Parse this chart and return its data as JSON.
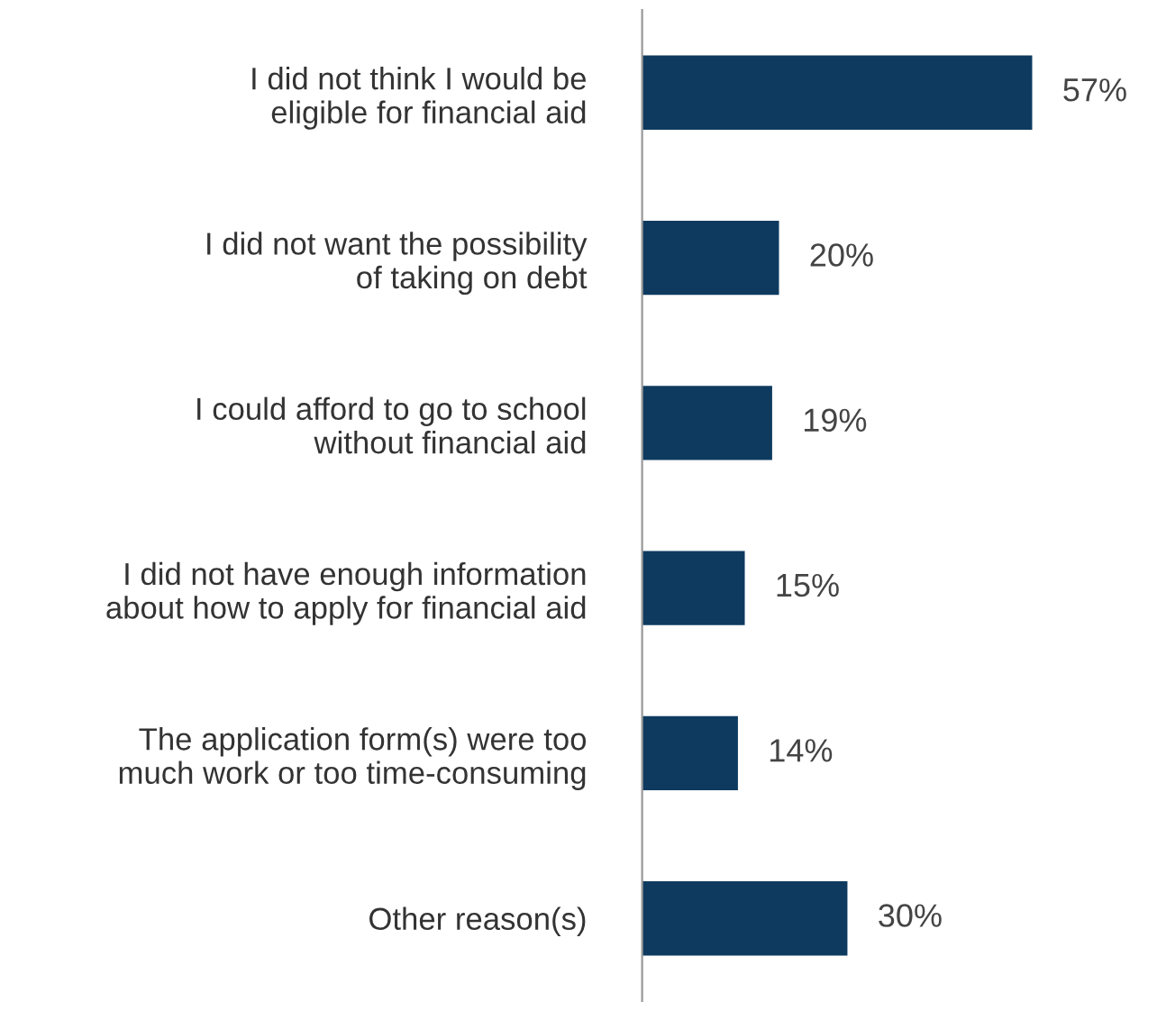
{
  "chart_data": {
    "type": "bar",
    "orientation": "horizontal",
    "categories": [
      "I did not think I would be\neligible for financial aid",
      "I did not want the possibility\nof taking on debt",
      "I could afford to go to school\nwithout financial aid",
      "I did not have enough information\nabout how to apply for financial aid",
      "The application form(s) were too\nmuch work or too time-consuming",
      "Other reason(s)"
    ],
    "values": [
      57,
      20,
      19,
      15,
      14,
      30
    ],
    "value_labels": [
      "57%",
      "20%",
      "19%",
      "15%",
      "14%",
      "30%"
    ],
    "color": "#0e3a5f",
    "tick_labels": "y",
    "grid": false,
    "legend": false
  }
}
